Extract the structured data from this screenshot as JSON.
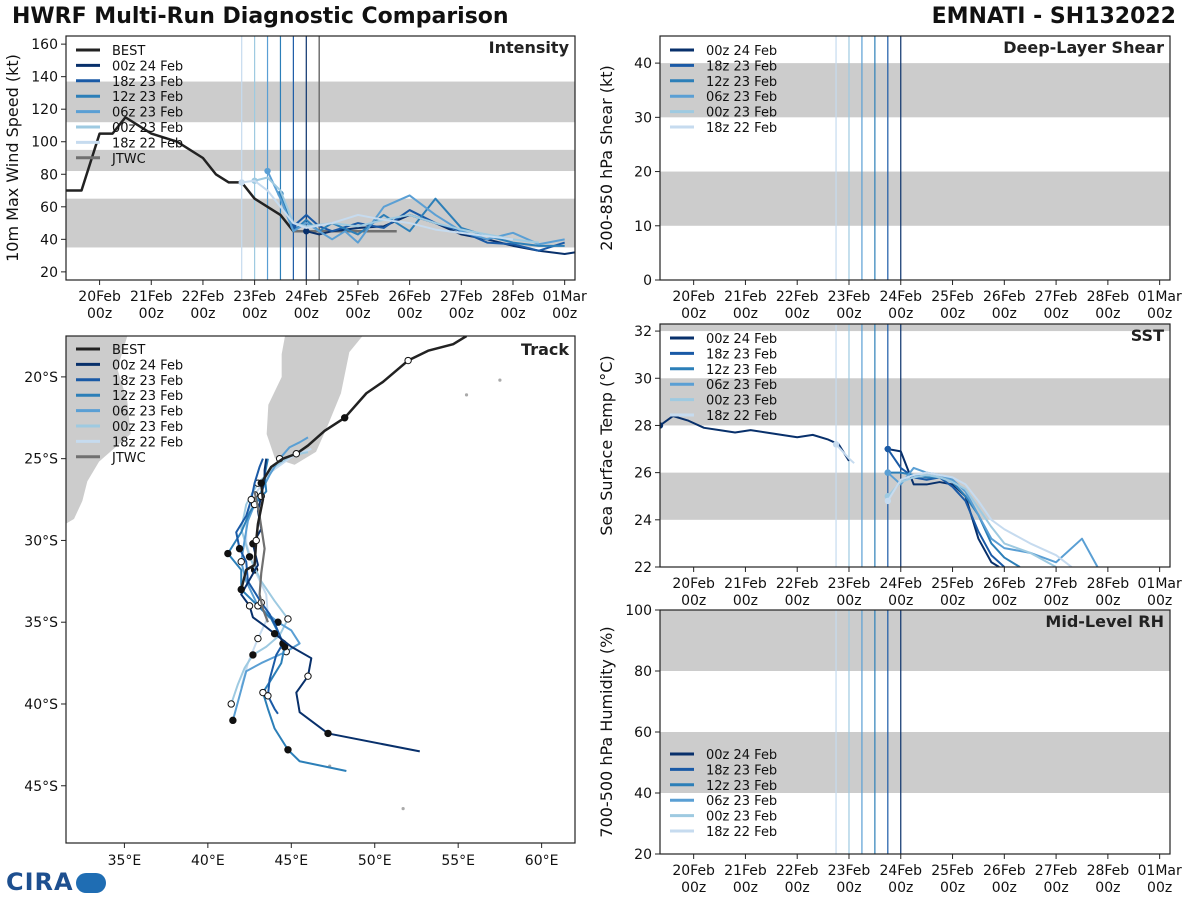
{
  "header": {
    "left": "HWRF Multi-Run Diagnostic Comparison",
    "right": "EMNATI - SH132022"
  },
  "logo": {
    "text": "CIRA"
  },
  "colors": {
    "best": "#222222",
    "jtwc": "#707070",
    "band": "#cccccc",
    "runs": [
      "#08306b",
      "#1a5aa6",
      "#2c7fb8",
      "#5a9fd4",
      "#9ecae1",
      "#c6dbef"
    ]
  },
  "time_axis": {
    "ticks": [
      "20Feb",
      "21Feb",
      "22Feb",
      "23Feb",
      "24Feb",
      "25Feb",
      "26Feb",
      "27Feb",
      "28Feb",
      "01Mar"
    ],
    "sub": "00z"
  },
  "run_times": [
    4.0,
    3.75,
    3.5,
    3.25,
    3.0,
    2.75
  ],
  "chart_data": [
    {
      "type": "line",
      "id": "intensity",
      "title": "Intensity",
      "ylabel": "10m Max Wind Speed (kt)",
      "xlim": [
        -0.65,
        9.2
      ],
      "ylim": [
        15,
        165
      ],
      "yticks": [
        20,
        40,
        60,
        80,
        100,
        120,
        140,
        160
      ],
      "bands": [
        [
          35,
          65
        ],
        [
          82,
          95
        ],
        [
          112,
          137
        ]
      ],
      "legend": [
        "BEST",
        "00z 24 Feb",
        "18z 23 Feb",
        "12z 23 Feb",
        "06z 23 Feb",
        "00z 23 Feb",
        "18z 22 Feb",
        "JTWC"
      ],
      "best": {
        "x": [
          -0.65,
          -0.35,
          0,
          0.25,
          0.5,
          0.75,
          1,
          1.5,
          2,
          2.25,
          2.5,
          2.75,
          3,
          3.25,
          3.5,
          3.75,
          4.0
        ],
        "y": [
          70,
          70,
          105,
          105,
          115,
          110,
          105,
          100,
          90,
          80,
          75,
          75,
          65,
          60,
          55,
          45,
          45
        ]
      },
      "jtwc": {
        "x": [
          3.75,
          4.0,
          4.25,
          5,
          5.75
        ],
        "y": [
          45,
          45,
          45,
          45,
          45
        ]
      },
      "series": [
        {
          "name": "00z 24 Feb",
          "x": [
            4.0,
            4.25,
            4.5,
            5,
            5.5,
            6,
            6.5,
            7,
            7.5,
            8,
            8.5,
            9,
            9.2
          ],
          "y": [
            45,
            43,
            45,
            47,
            48,
            55,
            50,
            43,
            40,
            36,
            33,
            31,
            32
          ]
        },
        {
          "name": "18z 23 Feb",
          "x": [
            3.75,
            4.0,
            4.25,
            4.5,
            5,
            5.5,
            6,
            6.5,
            7,
            7.5,
            8,
            8.5,
            9
          ],
          "y": [
            48,
            55,
            48,
            45,
            50,
            47,
            58,
            50,
            45,
            38,
            37,
            33,
            38
          ]
        },
        {
          "name": "12z 23 Feb",
          "x": [
            3.5,
            3.75,
            4.0,
            4.25,
            4.5,
            5,
            5.5,
            6,
            6.5,
            7,
            7.5,
            8,
            8.5,
            9
          ],
          "y": [
            68,
            45,
            52,
            45,
            50,
            43,
            55,
            45,
            65,
            47,
            42,
            38,
            36,
            36
          ]
        },
        {
          "name": "06z 23 Feb",
          "x": [
            3.25,
            3.5,
            3.75,
            4.0,
            4.25,
            4.5,
            4.75,
            5.0,
            5.5,
            6,
            6.5,
            7,
            7.5,
            8,
            8.5,
            9
          ],
          "y": [
            82,
            65,
            45,
            50,
            45,
            40,
            45,
            38,
            60,
            67,
            55,
            45,
            40,
            44,
            37,
            40
          ]
        },
        {
          "name": "00z 23 Feb",
          "x": [
            3.0,
            3.25,
            3.5,
            3.75,
            4.0,
            4.5,
            5,
            5.5,
            6,
            6.5,
            7,
            7.5,
            8,
            8.5
          ],
          "y": [
            76,
            78,
            70,
            50,
            48,
            50,
            48,
            52,
            55,
            50,
            46,
            43,
            40,
            38
          ]
        },
        {
          "name": "18z 22 Feb",
          "x": [
            2.75,
            3.0,
            3.25,
            3.5,
            3.75,
            4.0,
            4.5,
            5,
            5.5,
            6,
            6.5,
            7,
            7.5,
            8
          ],
          "y": [
            75,
            76,
            70,
            60,
            50,
            47,
            50,
            55,
            52,
            50,
            46,
            44,
            42,
            40
          ]
        }
      ]
    },
    {
      "type": "line",
      "id": "shear",
      "title": "Deep-Layer Shear",
      "ylabel": "200-850 hPa Shear (kt)",
      "xlim": [
        -0.65,
        9.2
      ],
      "ylim": [
        0,
        45
      ],
      "yticks": [
        0,
        10,
        20,
        30,
        40
      ],
      "bands": [
        [
          10,
          20
        ],
        [
          30,
          40
        ]
      ],
      "legend": [
        "00z 24 Feb",
        "18z 23 Feb",
        "12z 23 Feb",
        "06z 23 Feb",
        "00z 23 Feb",
        "18z 22 Feb"
      ],
      "series": []
    },
    {
      "type": "line",
      "id": "sst",
      "title": "SST",
      "ylabel": "Sea Surface Temp (°C)",
      "xlim": [
        -0.65,
        9.2
      ],
      "ylim": [
        22,
        32.3
      ],
      "yticks": [
        22,
        24,
        26,
        28,
        30,
        32
      ],
      "bands": [
        [
          24,
          26
        ],
        [
          28,
          30
        ],
        [
          32,
          32.3
        ]
      ],
      "legend": [
        "00z 24 Feb",
        "18z 23 Feb",
        "12z 23 Feb",
        "06z 23 Feb",
        "00z 23 Feb",
        "18z 22 Feb"
      ],
      "series": [
        {
          "name": "00z 24 Feb",
          "x": [
            -0.65,
            -0.4,
            -0.1,
            0.2,
            0.5,
            0.8,
            1.1,
            1.4,
            1.7,
            2.0,
            2.3,
            2.6,
            2.8,
            3.0
          ],
          "y": [
            28.0,
            28.4,
            28.2,
            27.9,
            27.8,
            27.7,
            27.8,
            27.7,
            27.6,
            27.5,
            27.6,
            27.4,
            27.2,
            26.5
          ]
        },
        {
          "name": "00z 24 Feb",
          "x": [
            3.75,
            4.0,
            4.25,
            4.5,
            4.75,
            5.0,
            5.25,
            5.5,
            5.75,
            5.9
          ],
          "y": [
            27.0,
            26.9,
            25.5,
            25.5,
            25.6,
            25.5,
            25.0,
            23.2,
            22.2,
            22.0
          ]
        },
        {
          "name": "18z 23 Feb",
          "x": [
            3.75,
            4.0,
            4.25,
            4.5,
            4.75,
            5.0,
            5.25,
            5.5,
            5.75,
            6.0
          ],
          "y": [
            27.0,
            26.2,
            25.8,
            25.7,
            25.8,
            25.4,
            24.8,
            23.5,
            22.5,
            22.0
          ]
        },
        {
          "name": "12z 23 Feb",
          "x": [
            3.75,
            4.0,
            4.25,
            4.5,
            4.75,
            5.0,
            5.25,
            5.5,
            5.75,
            6.0,
            6.3
          ],
          "y": [
            26.0,
            26.0,
            25.9,
            25.8,
            25.8,
            25.6,
            25.0,
            24.2,
            23.0,
            22.4,
            22.0
          ]
        },
        {
          "name": "06z 23 Feb",
          "x": [
            3.75,
            4.0,
            4.25,
            4.5,
            4.75,
            5.0,
            5.25,
            5.5,
            5.75,
            6.0,
            6.5,
            7.0,
            7.5,
            7.8
          ],
          "y": [
            26.0,
            25.5,
            26.2,
            26.0,
            25.9,
            25.7,
            25.2,
            24.2,
            23.2,
            22.8,
            22.6,
            22.2,
            23.2,
            22.0
          ]
        },
        {
          "name": "00z 23 Feb",
          "x": [
            3.75,
            4.0,
            4.25,
            4.5,
            4.75,
            5.0,
            5.25,
            5.5,
            5.75,
            6.0,
            6.5,
            7.0
          ],
          "y": [
            25.0,
            25.6,
            25.8,
            25.9,
            25.8,
            25.6,
            25.3,
            24.5,
            23.7,
            23.0,
            22.6,
            22.0
          ]
        },
        {
          "name": "18z 22 Feb",
          "x": [
            2.75,
            3.0,
            3.1
          ],
          "y": [
            27.2,
            26.6,
            26.4
          ]
        },
        {
          "name": "18z 22 Feb",
          "x": [
            3.75,
            4.0,
            4.25,
            4.5,
            4.75,
            5.0,
            5.25,
            5.5,
            5.75,
            6.0,
            6.5,
            7.0,
            7.3
          ],
          "y": [
            24.8,
            25.7,
            25.9,
            26.0,
            25.9,
            25.8,
            25.5,
            24.8,
            24.0,
            23.6,
            23.0,
            22.5,
            22.0
          ]
        }
      ]
    },
    {
      "type": "line",
      "id": "rh",
      "title": "Mid-Level RH",
      "ylabel": "700-500 hPa Humidity (%)",
      "xlim": [
        -0.65,
        9.2
      ],
      "ylim": [
        20,
        100
      ],
      "yticks": [
        20,
        40,
        60,
        80,
        100
      ],
      "bands": [
        [
          40,
          60
        ],
        [
          80,
          100
        ]
      ],
      "legend": [
        "00z 24 Feb",
        "18z 23 Feb",
        "12z 23 Feb",
        "06z 23 Feb",
        "00z 23 Feb",
        "18z 22 Feb"
      ],
      "series": []
    },
    {
      "type": "line",
      "id": "track",
      "title": "Track",
      "xlim": [
        31.5,
        62
      ],
      "ylim": [
        -48.5,
        -17.5
      ],
      "xticks": [
        35,
        40,
        45,
        50,
        55,
        60
      ],
      "xticklabels": [
        "35°E",
        "40°E",
        "45°E",
        "50°E",
        "55°E",
        "60°E"
      ],
      "yticks": [
        -20,
        -25,
        -30,
        -35,
        -40,
        -45
      ],
      "yticklabels": [
        "20°S",
        "25°S",
        "30°S",
        "35°S",
        "40°S",
        "45°S"
      ],
      "legend": [
        "BEST",
        "00z 24 Feb",
        "18z 23 Feb",
        "12z 23 Feb",
        "06z 23 Feb",
        "00z 23 Feb",
        "18z 22 Feb",
        "JTWC"
      ],
      "best": {
        "lon": [
          55.5,
          54.7,
          53.2,
          52,
          50.5,
          49.5,
          48.2,
          47,
          46,
          45.3,
          44.5,
          43.8,
          43.2,
          43.3,
          43.0,
          42.9,
          42.8,
          42.3,
          42.0
        ],
        "lat": [
          -17.5,
          -18.0,
          -18.4,
          -19.0,
          -20.3,
          -21.0,
          -22.5,
          -23.3,
          -24.2,
          -24.7,
          -25.0,
          -25.5,
          -26.5,
          -27.5,
          -29.0,
          -30.0,
          -31.5,
          -31.8,
          -33.0
        ]
      },
      "jtwc": {
        "lon": [
          42.8,
          43.1,
          43.4,
          43.2,
          43.1,
          43.3,
          43.6
        ],
        "lat": [
          -27.0,
          -28.5,
          -30.5,
          -32.0,
          -33.3,
          -34.2,
          -35.0
        ]
      },
      "series": [
        {
          "name": "00z 24 Feb",
          "lon": [
            43.5,
            43.4,
            43.4,
            43.2,
            43.0,
            43.2,
            42.7,
            43.0,
            42.0,
            42.5,
            42.7,
            43.5,
            44.0,
            45.0,
            46.2,
            46.0,
            45.3,
            45.5,
            47.2,
            52.7
          ],
          "lat": [
            -25.0,
            -25.7,
            -26.2,
            -27.3,
            -28.2,
            -29.3,
            -30.2,
            -31.5,
            -33.3,
            -34.0,
            -34.7,
            -35.3,
            -35.7,
            -36.5,
            -37.2,
            -38.3,
            -39.3,
            -40.5,
            -41.8,
            -42.9
          ]
        },
        {
          "name": "18z 23 Feb",
          "lon": [
            43.3,
            43.1,
            42.8,
            42.6,
            42.3,
            41.7,
            41.9,
            42.3,
            42.4,
            43.2,
            43.7,
            44.1,
            44.5,
            44.1,
            43.7,
            43.6,
            44.0,
            44.2
          ],
          "lat": [
            -25.0,
            -25.5,
            -26.5,
            -27.5,
            -28.5,
            -29.5,
            -30.5,
            -31.3,
            -32.5,
            -33.8,
            -34.5,
            -35.3,
            -36.3,
            -37.0,
            -38.5,
            -39.5,
            -40.3,
            -40.6
          ]
        },
        {
          "name": "12z 23 Feb",
          "lon": [
            43.6,
            43.4,
            43.5,
            42.8,
            42.5,
            42.0,
            41.2,
            42.0,
            42.0,
            43.0,
            43.8,
            44.3,
            44.6,
            44.4,
            43.8,
            43.3,
            43.6,
            44.0,
            44.8,
            45.5,
            48.3
          ],
          "lat": [
            -25.0,
            -26.0,
            -27.0,
            -27.8,
            -28.3,
            -29.5,
            -30.8,
            -31.8,
            -33.0,
            -34.0,
            -34.8,
            -35.8,
            -36.5,
            -37.5,
            -38.5,
            -39.3,
            -40.3,
            -41.5,
            -42.8,
            -43.5,
            -44.1
          ]
        },
        {
          "name": "06z 23 Feb",
          "lon": [
            46.0,
            45.5,
            44.9,
            44.3,
            43.7,
            43.2,
            42.8,
            42.4,
            42.2,
            42.0,
            42.3,
            43.0,
            44.2,
            45.0,
            45.5,
            44.7,
            43.2,
            42.3,
            41.5
          ],
          "lat": [
            -23.7,
            -24.0,
            -24.3,
            -25.0,
            -26.0,
            -27.0,
            -27.8,
            -28.8,
            -30.0,
            -31.3,
            -32.5,
            -34.0,
            -35.0,
            -35.5,
            -36.3,
            -36.8,
            -37.5,
            -38.0,
            -41.0
          ]
        },
        {
          "name": "00z 23 Feb",
          "lon": [
            46.0,
            45.0,
            44.0,
            43.0,
            42.3,
            42.0,
            42.5,
            43.2,
            44.0,
            44.8,
            44.3,
            43.5,
            42.7,
            42.2,
            41.8,
            41.4
          ],
          "lat": [
            -24.6,
            -24.8,
            -25.5,
            -26.5,
            -27.8,
            -29.3,
            -31.0,
            -32.5,
            -33.7,
            -34.8,
            -35.8,
            -36.5,
            -37.0,
            -37.8,
            -38.8,
            -40.0
          ]
        },
        {
          "name": "18z 22 Feb",
          "lon": [
            46.2,
            45.0,
            43.8,
            42.8,
            42.3,
            42.3,
            42.8,
            43.5,
            43.6,
            43.0,
            42.4,
            42.0
          ],
          "lat": [
            -24.4,
            -24.9,
            -25.8,
            -27.2,
            -28.7,
            -30.2,
            -31.8,
            -33.3,
            -34.7,
            -36.0,
            -37.5,
            -39.0
          ]
        }
      ]
    }
  ]
}
